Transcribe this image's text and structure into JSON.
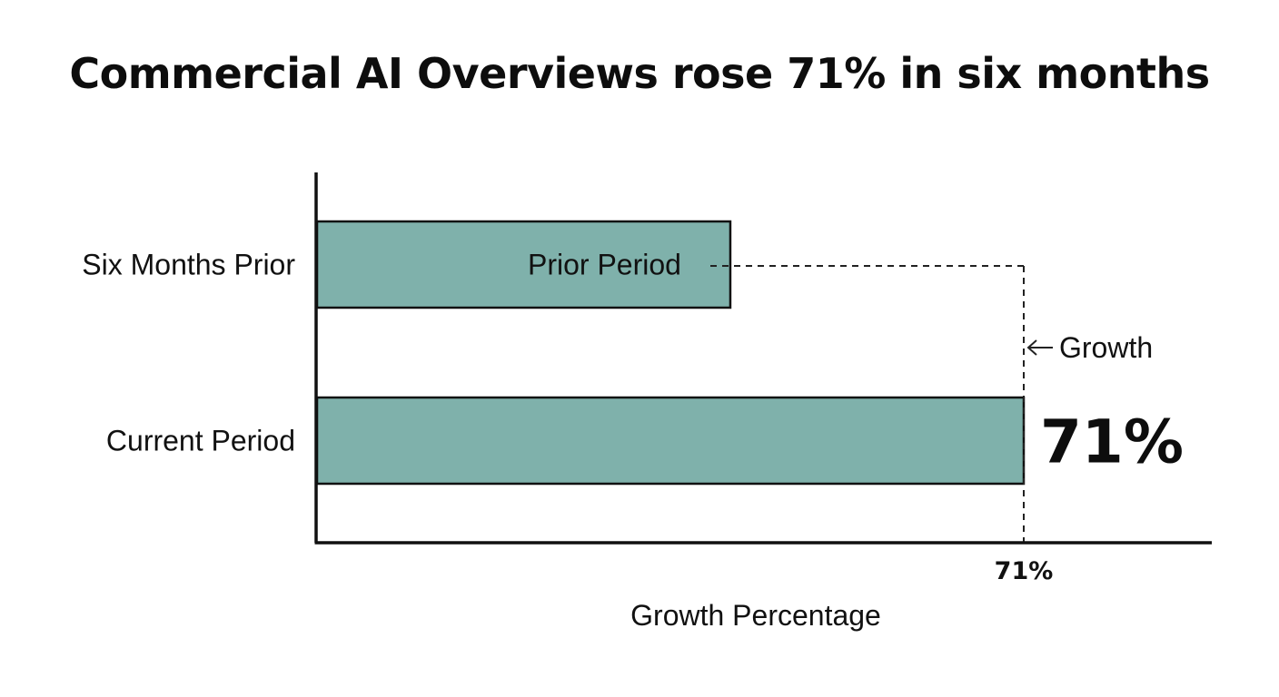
{
  "chart_data": {
    "type": "bar",
    "orientation": "horizontal",
    "title": "Commercial AI Overviews rose 71% in six months",
    "categories": [
      "Six Months Prior",
      "Current Period"
    ],
    "values": [
      100,
      171
    ],
    "xlabel": "Growth Percentage",
    "x_tick_labels": [
      "71%"
    ],
    "grid": false,
    "bar_color": "#7fb1ab",
    "annotations": {
      "prior_label": "Prior Period",
      "growth_label": "Growth",
      "growth_value": "71%"
    }
  }
}
